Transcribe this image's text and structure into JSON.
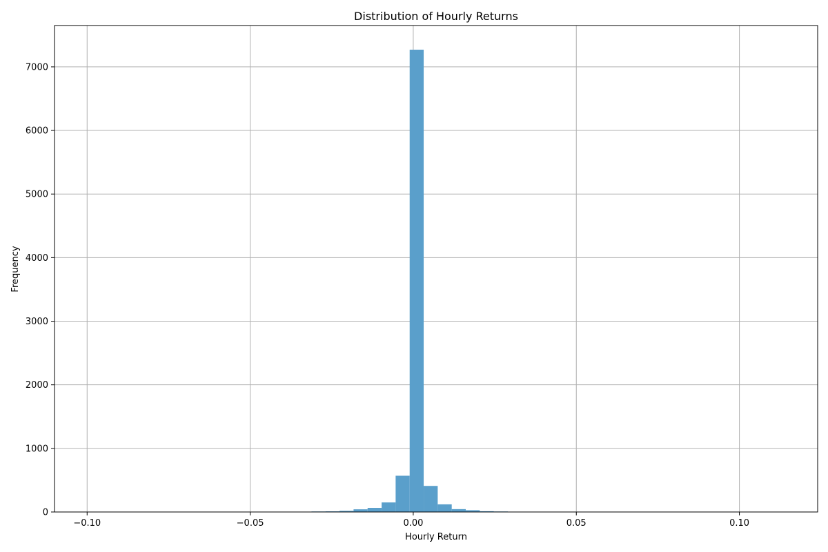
{
  "chart_data": {
    "type": "bar",
    "title": "Distribution of Hourly Returns",
    "xlabel": "Hourly Return",
    "ylabel": "Frequency",
    "xlim": [
      -0.11,
      0.124
    ],
    "ylim": [
      0,
      7650
    ],
    "grid": true,
    "x_ticks": [
      -0.1,
      -0.05,
      0.0,
      0.05,
      0.1
    ],
    "x_tick_labels": [
      "−0.10",
      "−0.05",
      "0.00",
      "0.05",
      "0.10"
    ],
    "y_ticks": [
      0,
      1000,
      2000,
      3000,
      4000,
      5000,
      6000,
      7000
    ],
    "y_tick_labels": [
      "0",
      "1000",
      "2000",
      "3000",
      "4000",
      "5000",
      "6000",
      "7000"
    ],
    "bar_color": "#5a9fcb",
    "bin_width": 0.0043,
    "bin_starts": [
      -0.0398,
      -0.0355,
      -0.0312,
      -0.0269,
      -0.0226,
      -0.0183,
      -0.014,
      -0.0097,
      -0.0054,
      -0.0011,
      0.0032,
      0.0075,
      0.0118,
      0.0161,
      0.0204,
      0.0247,
      0.029,
      0.0333,
      0.0376,
      0.0419
    ],
    "values": [
      3,
      5,
      8,
      10,
      18,
      42,
      65,
      150,
      570,
      7270,
      410,
      120,
      45,
      28,
      12,
      8,
      5,
      3,
      2,
      5
    ]
  }
}
